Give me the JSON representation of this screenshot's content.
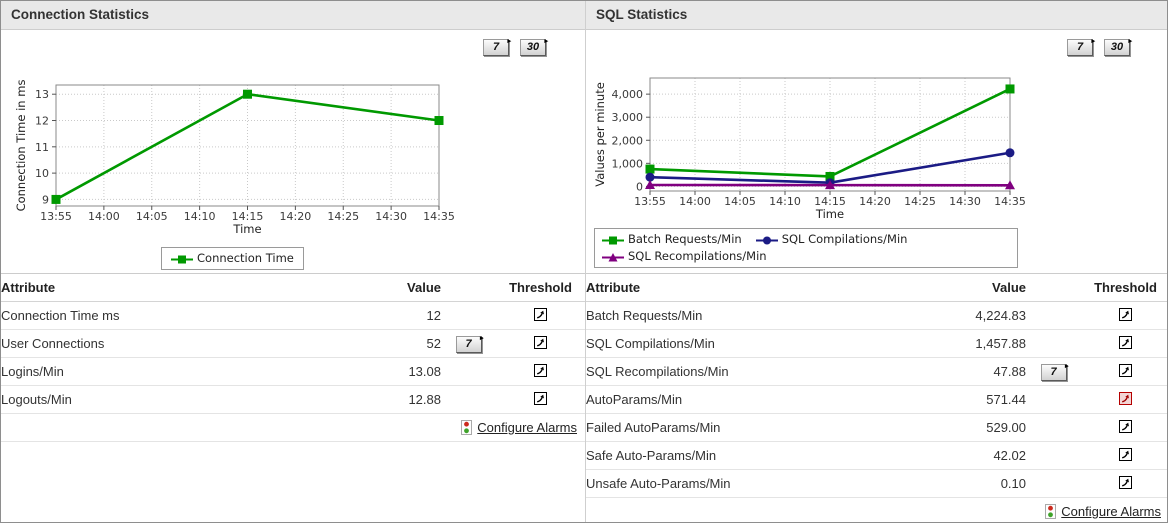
{
  "panels": [
    {
      "title": "Connection Statistics",
      "period_buttons": [
        {
          "label": "7"
        },
        {
          "label": "30"
        }
      ],
      "table": {
        "headers": {
          "attribute": "Attribute",
          "value": "Value",
          "threshold": "Threshold"
        },
        "rows": [
          {
            "attribute": "Connection Time ms",
            "value": "12"
          },
          {
            "attribute": "User Connections",
            "value": "52",
            "period_button": "7"
          },
          {
            "attribute": "Logins/Min",
            "value": "13.08"
          },
          {
            "attribute": "Logouts/Min",
            "value": "12.88"
          }
        ],
        "configure_alarms_label": "Configure Alarms"
      }
    },
    {
      "title": "SQL Statistics",
      "period_buttons": [
        {
          "label": "7"
        },
        {
          "label": "30"
        }
      ],
      "table": {
        "headers": {
          "attribute": "Attribute",
          "value": "Value",
          "threshold": "Threshold"
        },
        "rows": [
          {
            "attribute": "Batch Requests/Min",
            "value": "4,224.83"
          },
          {
            "attribute": "SQL Compilations/Min",
            "value": "1,457.88"
          },
          {
            "attribute": "SQL Recompilations/Min",
            "value": "47.88",
            "period_button": "7"
          },
          {
            "attribute": "AutoParams/Min",
            "value": "571.44",
            "threshold_alert": true
          },
          {
            "attribute": "Failed AutoParams/Min",
            "value": "529.00"
          },
          {
            "attribute": "Safe Auto-Params/Min",
            "value": "42.02"
          },
          {
            "attribute": "Unsafe Auto-Params/Min",
            "value": "0.10"
          }
        ],
        "configure_alarms_label": "Configure Alarms"
      }
    }
  ],
  "chart_data": [
    {
      "type": "line",
      "title": "Connection Statistics",
      "categories": [
        "13:55",
        "14:00",
        "14:05",
        "14:10",
        "14:15",
        "14:20",
        "14:25",
        "14:30",
        "14:35"
      ],
      "series": [
        {
          "name": "Connection Time",
          "color": "#009900",
          "marker": "square",
          "points": [
            {
              "x": "13:55",
              "y": 9
            },
            {
              "x": "14:15",
              "y": 13
            },
            {
              "x": "14:35",
              "y": 12
            }
          ]
        }
      ],
      "xlabel": "Time",
      "ylabel": "Connection Time in ms",
      "ylim": [
        8.75,
        13.35
      ],
      "yticks": [
        9,
        10,
        11,
        12,
        13
      ],
      "grid": true,
      "legend_position": "bottom"
    },
    {
      "type": "line",
      "title": "SQL Statistics",
      "categories": [
        "13:55",
        "14:00",
        "14:05",
        "14:10",
        "14:15",
        "14:20",
        "14:25",
        "14:30",
        "14:35"
      ],
      "series": [
        {
          "name": "Batch Requests/Min",
          "color": "#009900",
          "marker": "square",
          "points": [
            {
              "x": "13:55",
              "y": 750
            },
            {
              "x": "14:15",
              "y": 430
            },
            {
              "x": "14:35",
              "y": 4224.83
            }
          ]
        },
        {
          "name": "SQL Compilations/Min",
          "color": "#1b1b85",
          "marker": "circle",
          "points": [
            {
              "x": "13:55",
              "y": 400
            },
            {
              "x": "14:15",
              "y": 160
            },
            {
              "x": "14:35",
              "y": 1457.88
            }
          ]
        },
        {
          "name": "SQL Recompilations/Min",
          "color": "#800080",
          "marker": "triangle",
          "points": [
            {
              "x": "13:55",
              "y": 60
            },
            {
              "x": "14:15",
              "y": 55
            },
            {
              "x": "14:35",
              "y": 47.88
            }
          ]
        }
      ],
      "xlabel": "Time",
      "ylabel": "Values per minute",
      "ylim": [
        -200,
        4700
      ],
      "yticks": [
        0,
        1000,
        2000,
        3000,
        4000
      ],
      "grid": true,
      "legend_position": "bottom"
    }
  ],
  "colors": {
    "accent_green": "#009900",
    "accent_navy": "#1b1b85",
    "accent_purple": "#800080",
    "alert_red": "#b40000",
    "header_bg": "#e9e9e9"
  },
  "icons": {
    "threshold": "configure-threshold-arrow-icon",
    "alarm": "traffic-light-icon",
    "button_flag": "small-right-triangle-icon"
  }
}
